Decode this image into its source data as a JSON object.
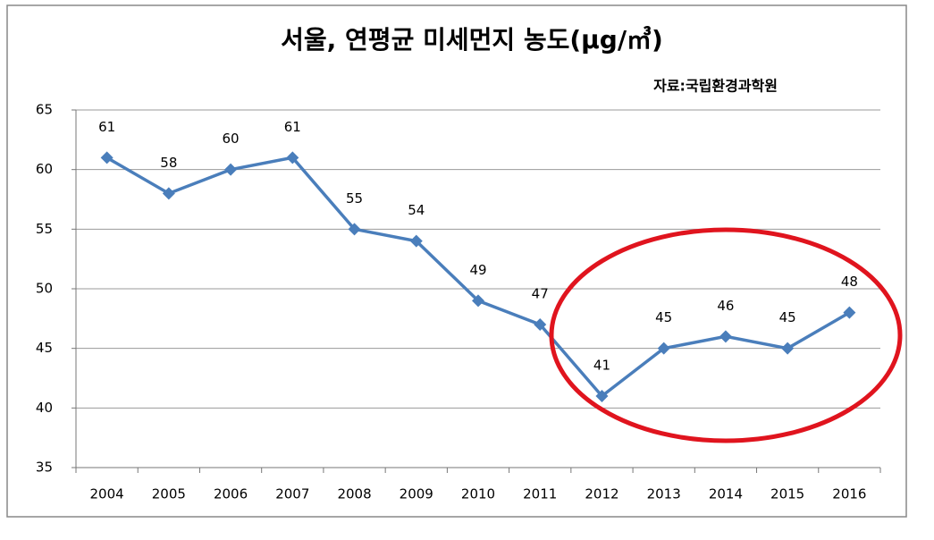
{
  "chart_data": {
    "type": "line",
    "title": "서울, 연평균 미세먼지 농도(μg/㎥)",
    "subtitle": "자료:국립환경과학원",
    "categories": [
      "2004",
      "2005",
      "2006",
      "2007",
      "2008",
      "2009",
      "2010",
      "2011",
      "2012",
      "2013",
      "2014",
      "2015",
      "2016"
    ],
    "values": [
      61,
      58,
      60,
      61,
      55,
      54,
      49,
      47,
      41,
      45,
      46,
      45,
      48
    ],
    "color": "#4a7ebb",
    "ylim": [
      35,
      65
    ],
    "yticks": [
      35,
      40,
      45,
      50,
      55,
      60,
      65
    ],
    "grid": true
  }
}
